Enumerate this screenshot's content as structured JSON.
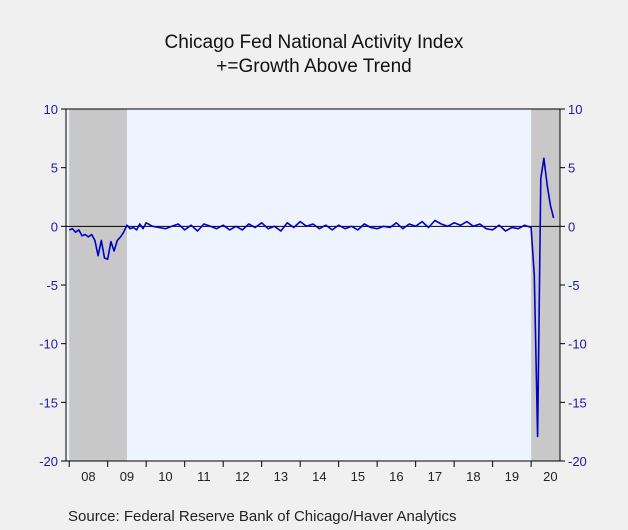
{
  "chart_data": {
    "type": "line",
    "title": "Chicago Fed National Activity Index",
    "subtitle": "+=Growth Above Trend",
    "source": "Source:  Federal Reserve Bank of Chicago/Haver Analytics",
    "ylim": [
      -20,
      10
    ],
    "yticks": [
      10,
      5,
      0,
      -5,
      -10,
      -15,
      -20
    ],
    "xlim": [
      2007.917,
      2020.75
    ],
    "xtick_labels": [
      "08",
      "09",
      "10",
      "11",
      "12",
      "13",
      "14",
      "15",
      "16",
      "17",
      "18",
      "19",
      "20"
    ],
    "recessions": [
      [
        2008.0,
        2009.5
      ],
      [
        2020.0,
        2020.75
      ]
    ],
    "grid": false,
    "colors": {
      "line": "#0000c8",
      "tick_text": "#1a1aa8",
      "recession": "#c8c8c8",
      "plot_bg": "#eef4ff"
    },
    "series": [
      {
        "x": [
          2008.0,
          2008.083,
          2008.167,
          2008.25,
          2008.333,
          2008.417,
          2008.5,
          2008.583,
          2008.667,
          2008.75,
          2008.833,
          2008.917,
          2009.0,
          2009.083,
          2009.167,
          2009.25,
          2009.333,
          2009.417,
          2009.5,
          2009.583,
          2009.667,
          2009.75,
          2009.833,
          2009.917,
          2010.0,
          2010.167,
          2010.333,
          2010.5,
          2010.667,
          2010.833,
          2011.0,
          2011.167,
          2011.333,
          2011.5,
          2011.667,
          2011.833,
          2012.0,
          2012.167,
          2012.333,
          2012.5,
          2012.667,
          2012.833,
          2013.0,
          2013.167,
          2013.333,
          2013.5,
          2013.667,
          2013.833,
          2014.0,
          2014.167,
          2014.333,
          2014.5,
          2014.667,
          2014.833,
          2015.0,
          2015.167,
          2015.333,
          2015.5,
          2015.667,
          2015.833,
          2016.0,
          2016.167,
          2016.333,
          2016.5,
          2016.667,
          2016.833,
          2017.0,
          2017.167,
          2017.333,
          2017.5,
          2017.667,
          2017.833,
          2018.0,
          2018.167,
          2018.333,
          2018.5,
          2018.667,
          2018.833,
          2019.0,
          2019.167,
          2019.333,
          2019.5,
          2019.667,
          2019.833,
          2020.0,
          2020.083,
          2020.167,
          2020.25,
          2020.333,
          2020.417,
          2020.5,
          2020.583
        ],
        "values": [
          -0.3,
          -0.2,
          -0.5,
          -0.3,
          -0.8,
          -0.7,
          -0.9,
          -0.7,
          -1.2,
          -2.5,
          -1.2,
          -2.7,
          -2.8,
          -1.3,
          -2.1,
          -1.2,
          -0.9,
          -0.5,
          0.1,
          -0.2,
          -0.1,
          -0.3,
          0.2,
          -0.2,
          0.3,
          0.0,
          -0.1,
          -0.2,
          0.0,
          0.2,
          -0.3,
          0.1,
          -0.4,
          0.2,
          0.0,
          -0.2,
          0.1,
          -0.3,
          0.0,
          -0.3,
          0.2,
          -0.1,
          0.3,
          -0.2,
          0.0,
          -0.4,
          0.3,
          -0.1,
          0.4,
          0.0,
          0.2,
          -0.2,
          0.1,
          -0.3,
          0.1,
          -0.2,
          0.0,
          -0.3,
          0.2,
          -0.1,
          -0.2,
          0.0,
          -0.1,
          0.3,
          -0.2,
          0.2,
          0.0,
          0.4,
          -0.1,
          0.5,
          0.2,
          0.0,
          0.3,
          0.1,
          0.4,
          0.0,
          0.2,
          -0.2,
          -0.3,
          0.1,
          -0.4,
          -0.1,
          -0.2,
          0.1,
          -0.1,
          -4.2,
          -17.9,
          4.1,
          5.8,
          3.5,
          1.8,
          0.7
        ]
      }
    ]
  }
}
